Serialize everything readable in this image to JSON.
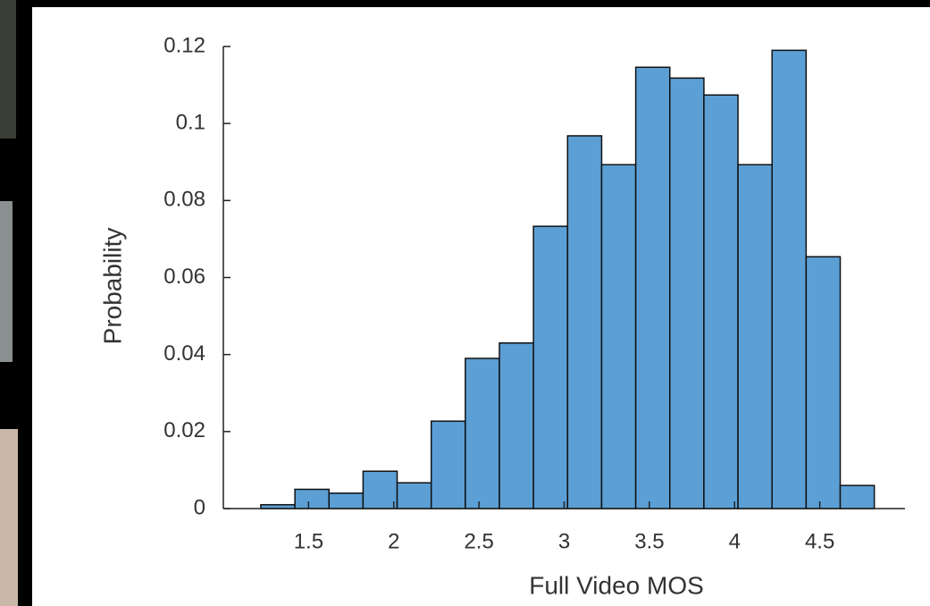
{
  "chart_data": {
    "type": "histogram",
    "xlabel": "Full Video MOS",
    "ylabel": "Probability",
    "bins": [
      1.22,
      1.42,
      1.62,
      1.82,
      2.02,
      2.22,
      2.42,
      2.62,
      2.82,
      3.02,
      3.22,
      3.42,
      3.62,
      3.82,
      4.02,
      4.22,
      4.42,
      4.62,
      4.82
    ],
    "values": [
      0.001,
      0.005,
      0.004,
      0.0097,
      0.0067,
      0.0227,
      0.039,
      0.043,
      0.0733,
      0.0968,
      0.0893,
      0.1146,
      0.1118,
      0.1074,
      0.0893,
      0.119,
      0.0654,
      0.006
    ],
    "color": "#5b9fd5",
    "xlim": [
      1.0,
      5.0
    ],
    "xticks": [
      1.5,
      2,
      2.5,
      3,
      3.5,
      4,
      4.5
    ],
    "ylim": [
      0,
      0.12
    ],
    "yticks": [
      0,
      0.02,
      0.04,
      0.06,
      0.08,
      0.1,
      0.12
    ]
  }
}
